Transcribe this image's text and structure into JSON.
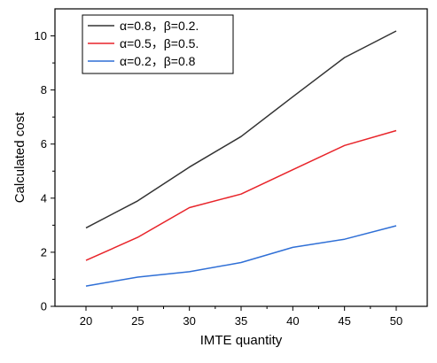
{
  "chart_data": {
    "type": "line",
    "xlabel": "IMTE quantity",
    "ylabel": "Calculated cost",
    "x": [
      20,
      25,
      30,
      35,
      40,
      45,
      50
    ],
    "xlim": [
      17,
      53
    ],
    "ylim": [
      0,
      11
    ],
    "xticks": [
      "20",
      "25",
      "30",
      "35",
      "40",
      "45",
      "50"
    ],
    "yticks": [
      "0",
      "2",
      "4",
      "6",
      "8",
      "10"
    ],
    "grid": false,
    "legend_position": "top-left",
    "series": [
      {
        "name": "α=0.8，β=0.2.",
        "color": "#333333",
        "values": [
          2.9,
          3.9,
          5.15,
          6.28,
          7.75,
          9.2,
          10.18
        ]
      },
      {
        "name": "α=0.5，β=0.5.",
        "color": "#e8242a",
        "values": [
          1.7,
          2.55,
          3.65,
          4.15,
          5.05,
          5.95,
          6.5
        ]
      },
      {
        "name": "α=0.2，β=0.8",
        "color": "#2f6fd6",
        "values": [
          0.75,
          1.08,
          1.28,
          1.62,
          2.18,
          2.48,
          2.98
        ]
      }
    ]
  }
}
